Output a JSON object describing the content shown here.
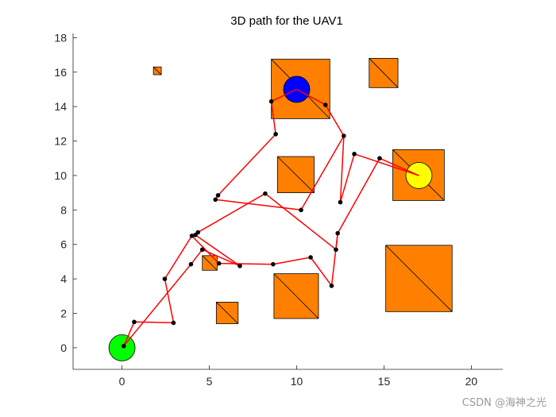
{
  "watermark": "CSDN @海神之光",
  "chart_data": {
    "type": "scatter",
    "title": "3D path for the UAV1",
    "xlabel": "",
    "ylabel": "",
    "xlim": [
      -2.8,
      21.8
    ],
    "ylim": [
      -1.25,
      18.25
    ],
    "xticks": [
      0,
      5,
      10,
      15,
      20
    ],
    "yticks": [
      0,
      2,
      4,
      6,
      8,
      10,
      12,
      14,
      16,
      18
    ],
    "grid": false,
    "legend": "none",
    "colors": {
      "obstacle_fill": "#ff8000",
      "obstacle_stroke": "#000000",
      "path": "#ff0000",
      "waypoint": "#000000",
      "start": "#00ff00",
      "end": "#0000ff",
      "intermediate": "#ffff00"
    },
    "obstacles": [
      {
        "x0": 1.8,
        "y0": 15.85,
        "x1": 2.25,
        "y1": 16.3
      },
      {
        "x0": 8.55,
        "y0": 13.3,
        "x1": 11.9,
        "y1": 16.75
      },
      {
        "x0": 14.15,
        "y0": 15.1,
        "x1": 15.8,
        "y1": 16.8
      },
      {
        "x0": 8.9,
        "y0": 9.0,
        "x1": 11.0,
        "y1": 11.1
      },
      {
        "x0": 15.5,
        "y0": 8.55,
        "x1": 18.45,
        "y1": 11.5
      },
      {
        "x0": 15.1,
        "y0": 2.1,
        "x1": 18.9,
        "y1": 5.95
      },
      {
        "x0": 8.7,
        "y0": 1.7,
        "x1": 11.25,
        "y1": 4.3
      },
      {
        "x0": 4.6,
        "y0": 4.5,
        "x1": 5.45,
        "y1": 5.35
      },
      {
        "x0": 5.4,
        "y0": 1.4,
        "x1": 6.65,
        "y1": 2.65
      }
    ],
    "targets": [
      {
        "role": "start",
        "x": 0.0,
        "y": 0.0,
        "r": 0.75
      },
      {
        "role": "end",
        "x": 10.0,
        "y": 15.0,
        "r": 0.75
      },
      {
        "role": "intermediate",
        "x": 17.0,
        "y": 10.0,
        "r": 0.75
      }
    ],
    "paths": [
      {
        "name": "path-1",
        "points": [
          [
            0.1,
            0.1
          ],
          [
            0.7,
            1.5
          ],
          [
            2.95,
            1.45
          ],
          [
            2.45,
            4.0
          ],
          [
            4.0,
            6.5
          ],
          [
            5.55,
            4.9
          ],
          [
            8.65,
            4.85
          ],
          [
            10.8,
            5.25
          ],
          [
            12.0,
            3.6
          ],
          [
            12.35,
            6.65
          ],
          [
            14.75,
            11.0
          ],
          [
            17.0,
            10.0
          ]
        ]
      },
      {
        "name": "path-2",
        "points": [
          [
            17.0,
            10.0
          ],
          [
            13.3,
            11.25
          ],
          [
            12.5,
            8.45
          ],
          [
            12.7,
            12.3
          ],
          [
            11.65,
            14.1
          ],
          [
            10.0,
            15.0
          ]
        ]
      },
      {
        "name": "path-3",
        "points": [
          [
            10.0,
            15.0
          ],
          [
            8.55,
            14.3
          ],
          [
            8.8,
            12.4
          ],
          [
            5.5,
            8.85
          ],
          [
            5.35,
            8.6
          ],
          [
            10.25,
            8.0
          ],
          [
            12.7,
            12.3
          ]
        ]
      },
      {
        "name": "path-4",
        "points": [
          [
            12.35,
            6.65
          ],
          [
            12.25,
            5.7
          ],
          [
            8.2,
            8.95
          ],
          [
            4.35,
            6.7
          ],
          [
            4.2,
            6.55
          ],
          [
            6.75,
            4.75
          ],
          [
            4.6,
            5.7
          ],
          [
            3.95,
            4.85
          ],
          [
            0.1,
            0.1
          ]
        ]
      }
    ]
  }
}
